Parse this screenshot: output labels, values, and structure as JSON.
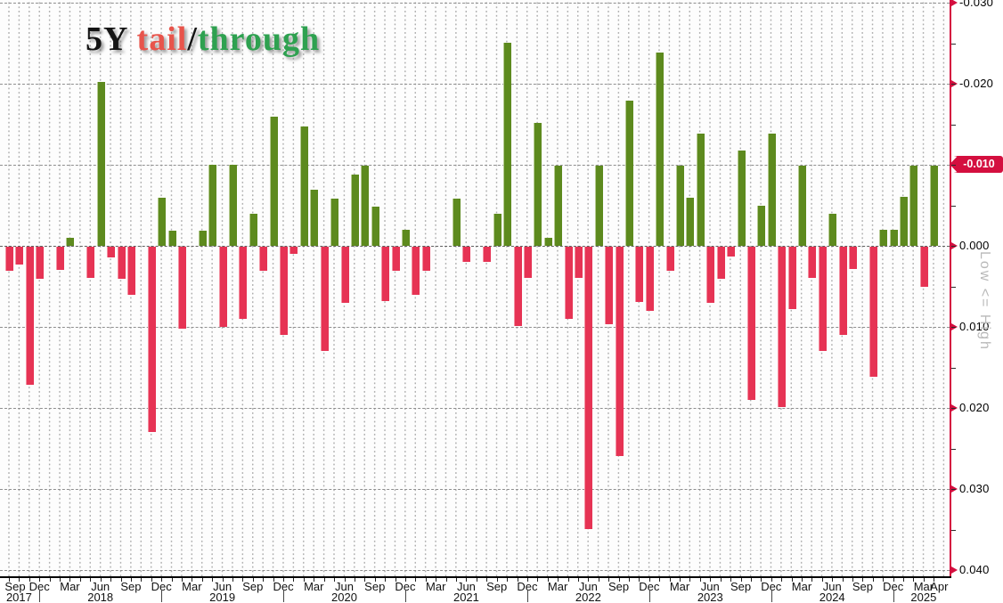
{
  "title": {
    "part_5y": "5Y",
    "part_tail": " tail",
    "part_slash": "/",
    "part_through": "through"
  },
  "colors": {
    "bar_positive_tail": "#e63354",
    "bar_negative_through": "#5d8a1e",
    "axis_red": "#d40f3f",
    "badge_bg": "#d40f3f",
    "badge_text": "#ffffff",
    "title_red": "#e8544b",
    "title_green": "#2ea150",
    "side_label_gray": "#b8b8b8"
  },
  "y_axis": {
    "labels": [
      "-0.030",
      "-0.020",
      "-0.010",
      "0.000",
      "0.010",
      "0.020",
      "0.030",
      "0.040"
    ],
    "values": [
      -0.03,
      -0.02,
      -0.01,
      0.0,
      0.01,
      0.02,
      0.03,
      0.04
    ],
    "last_value_badge": "-0.010",
    "side_label": "Low <= High",
    "inverted": true
  },
  "x_axis": {
    "quarter_labels": [
      "Sep",
      "Dec",
      "Mar",
      "Jun",
      "Sep",
      "Dec",
      "Mar",
      "Jun",
      "Sep",
      "Dec",
      "Mar",
      "Jun",
      "Sep",
      "Dec",
      "Mar",
      "Jun",
      "Sep",
      "Dec",
      "Mar",
      "Jun",
      "Sep",
      "Dec",
      "Mar",
      "Jun",
      "Sep",
      "Dec",
      "Mar",
      "Jun",
      "Sep",
      "Dec",
      "Mar",
      "Apr"
    ],
    "years": [
      "2017",
      "2018",
      "2019",
      "2020",
      "2021",
      "2022",
      "2023",
      "2024",
      "2025"
    ],
    "year_center_months": [
      1,
      9,
      21,
      33,
      45,
      57,
      69,
      81,
      90
    ],
    "year_separator_months": [
      3,
      15,
      27,
      39,
      51,
      63,
      75,
      87
    ]
  },
  "chart_data": {
    "type": "bar",
    "title": "5Y tail/through",
    "frequency": "monthly",
    "x_start": "Sep 2017",
    "x_end": "Apr 2025",
    "ylabel": "Low <= High",
    "ylim": [
      -0.03,
      0.04
    ],
    "y_axis_inverted": true,
    "grid": "dotted monthly columns + dashed horizontal lines every 0.010",
    "legend": {
      "negative_green": "through",
      "positive_red": "tail"
    },
    "months": [
      "Sep 2017",
      "Oct 2017",
      "Nov 2017",
      "Dec 2017",
      "Jan 2018",
      "Feb 2018",
      "Mar 2018",
      "Apr 2018",
      "May 2018",
      "Jun 2018",
      "Jul 2018",
      "Aug 2018",
      "Sep 2018",
      "Oct 2018",
      "Nov 2018",
      "Dec 2018",
      "Jan 2019",
      "Feb 2019",
      "Mar 2019",
      "Apr 2019",
      "May 2019",
      "Jun 2019",
      "Jul 2019",
      "Aug 2019",
      "Sep 2019",
      "Oct 2019",
      "Nov 2019",
      "Dec 2019",
      "Jan 2020",
      "Feb 2020",
      "Mar 2020",
      "Apr 2020",
      "May 2020",
      "Jun 2020",
      "Jul 2020",
      "Aug 2020",
      "Sep 2020",
      "Oct 2020",
      "Nov 2020",
      "Dec 2020",
      "Jan 2021",
      "Feb 2021",
      "Mar 2021",
      "Apr 2021",
      "May 2021",
      "Jun 2021",
      "Jul 2021",
      "Aug 2021",
      "Sep 2021",
      "Oct 2021",
      "Nov 2021",
      "Dec 2021",
      "Jan 2022",
      "Feb 2022",
      "Mar 2022",
      "Apr 2022",
      "May 2022",
      "Jun 2022",
      "Jul 2022",
      "Aug 2022",
      "Sep 2022",
      "Oct 2022",
      "Nov 2022",
      "Dec 2022",
      "Jan 2023",
      "Feb 2023",
      "Mar 2023",
      "Apr 2023",
      "May 2023",
      "Jun 2023",
      "Jul 2023",
      "Aug 2023",
      "Sep 2023",
      "Oct 2023",
      "Nov 2023",
      "Dec 2023",
      "Jan 2024",
      "Feb 2024",
      "Mar 2024",
      "Apr 2024",
      "May 2024",
      "Jun 2024",
      "Jul 2024",
      "Aug 2024",
      "Sep 2024",
      "Oct 2024",
      "Nov 2024",
      "Dec 2024",
      "Jan 2025",
      "Feb 2025",
      "Mar 2025",
      "Apr 2025"
    ],
    "values": [
      0.003,
      0.0022,
      0.017,
      0.004,
      0,
      0.0029,
      -0.001,
      0,
      0.0038,
      -0.0202,
      0.0013,
      0.004,
      0.0059,
      0,
      0.0229,
      -0.0059,
      -0.0019,
      0.0101,
      0,
      -0.0019,
      -0.01,
      0.0099,
      -0.01,
      0.0089,
      -0.004,
      0.003,
      -0.0159,
      0.0109,
      0.0009,
      -0.0147,
      -0.0069,
      0.0129,
      -0.0058,
      0.0069,
      -0.0088,
      -0.0099,
      -0.0048,
      0.0067,
      0.003,
      -0.002,
      0.0059,
      0.003,
      0,
      0,
      -0.0058,
      0.0019,
      0,
      0.0019,
      -0.004,
      -0.0251,
      0.0098,
      0.0038,
      -0.0152,
      -0.001,
      -0.0099,
      0.0089,
      0.0038,
      0.0348,
      -0.0099,
      0.0096,
      0.0258,
      -0.0179,
      0.0068,
      0.0079,
      -0.0238,
      0.003,
      -0.0099,
      -0.0059,
      -0.0139,
      0.0069,
      0.004,
      0.0012,
      -0.0118,
      0.0189,
      -0.0049,
      -0.0139,
      0.0198,
      0.0077,
      -0.0099,
      0.0039,
      0.0129,
      -0.004,
      0.0109,
      0.0028,
      0,
      0.016,
      -0.002,
      -0.002,
      -0.006,
      -0.0099,
      0.0049,
      -0.0099
    ]
  }
}
